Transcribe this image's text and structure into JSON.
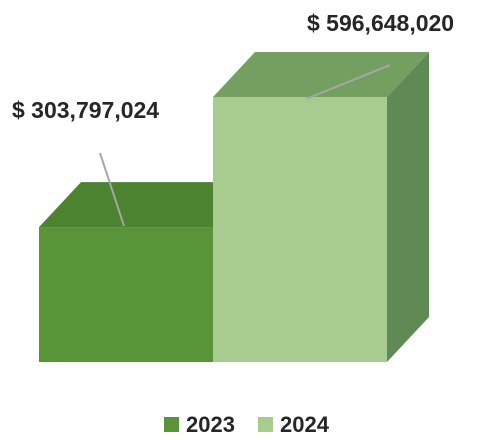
{
  "chart_data": {
    "type": "bar",
    "style": "3d",
    "categories": [
      "2023",
      "2024"
    ],
    "values": [
      303797024,
      596648020
    ],
    "data_labels": [
      "$ 303,797,024",
      "$ 596,648,020"
    ],
    "colors": {
      "2023": {
        "front": "#5a9438",
        "top": "#4c8330",
        "side": "#4a7a36"
      },
      "2024": {
        "front": "#a8cc90",
        "top": "#73a060",
        "side": "#5f8a55"
      }
    },
    "legend": {
      "placement": "bottom",
      "entries": [
        {
          "label": "2023",
          "color": "#5a9438"
        },
        {
          "label": "2024",
          "color": "#a8cc90"
        }
      ]
    },
    "grid": false,
    "title": "",
    "xlabel": "",
    "ylabel": ""
  }
}
